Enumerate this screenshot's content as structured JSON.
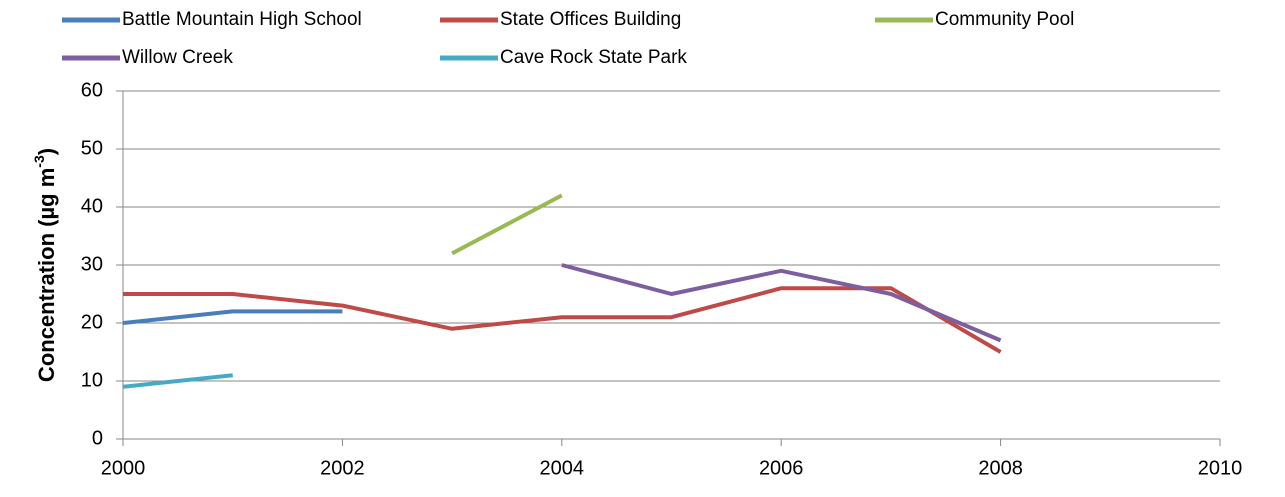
{
  "chart_data": {
    "type": "line",
    "y_label": {
      "text": "Concentration (µg m",
      "superscript": "-3",
      "suffix": ")"
    },
    "x": [
      2000,
      2001,
      2002,
      2003,
      2004,
      2005,
      2006,
      2007,
      2008
    ],
    "series": [
      {
        "name": "Battle Mountain High School",
        "color": "#4a7ebb",
        "values": [
          20,
          22,
          22,
          null,
          null,
          null,
          null,
          null,
          null
        ]
      },
      {
        "name": "State Offices Building",
        "color": "#be4b48",
        "values": [
          25,
          25,
          23,
          19,
          21,
          21,
          26,
          26,
          15
        ]
      },
      {
        "name": "Community Pool",
        "color": "#98b954",
        "values": [
          null,
          null,
          null,
          32,
          42,
          null,
          null,
          null,
          null
        ]
      },
      {
        "name": "Willow Creek",
        "color": "#7d5fa0",
        "values": [
          null,
          null,
          null,
          null,
          30,
          25,
          29,
          25,
          17
        ]
      },
      {
        "name": "Cave Rock State Park",
        "color": "#46aac5",
        "values": [
          9,
          11,
          null,
          null,
          null,
          null,
          null,
          null,
          null
        ]
      }
    ],
    "xlim": [
      2000,
      2010
    ],
    "xticks": [
      2000,
      2002,
      2004,
      2006,
      2008,
      2010
    ],
    "ylim": [
      0,
      60
    ],
    "yticks": [
      0,
      10,
      20,
      30,
      40,
      50,
      60
    ],
    "grid": true,
    "legend": "top"
  }
}
